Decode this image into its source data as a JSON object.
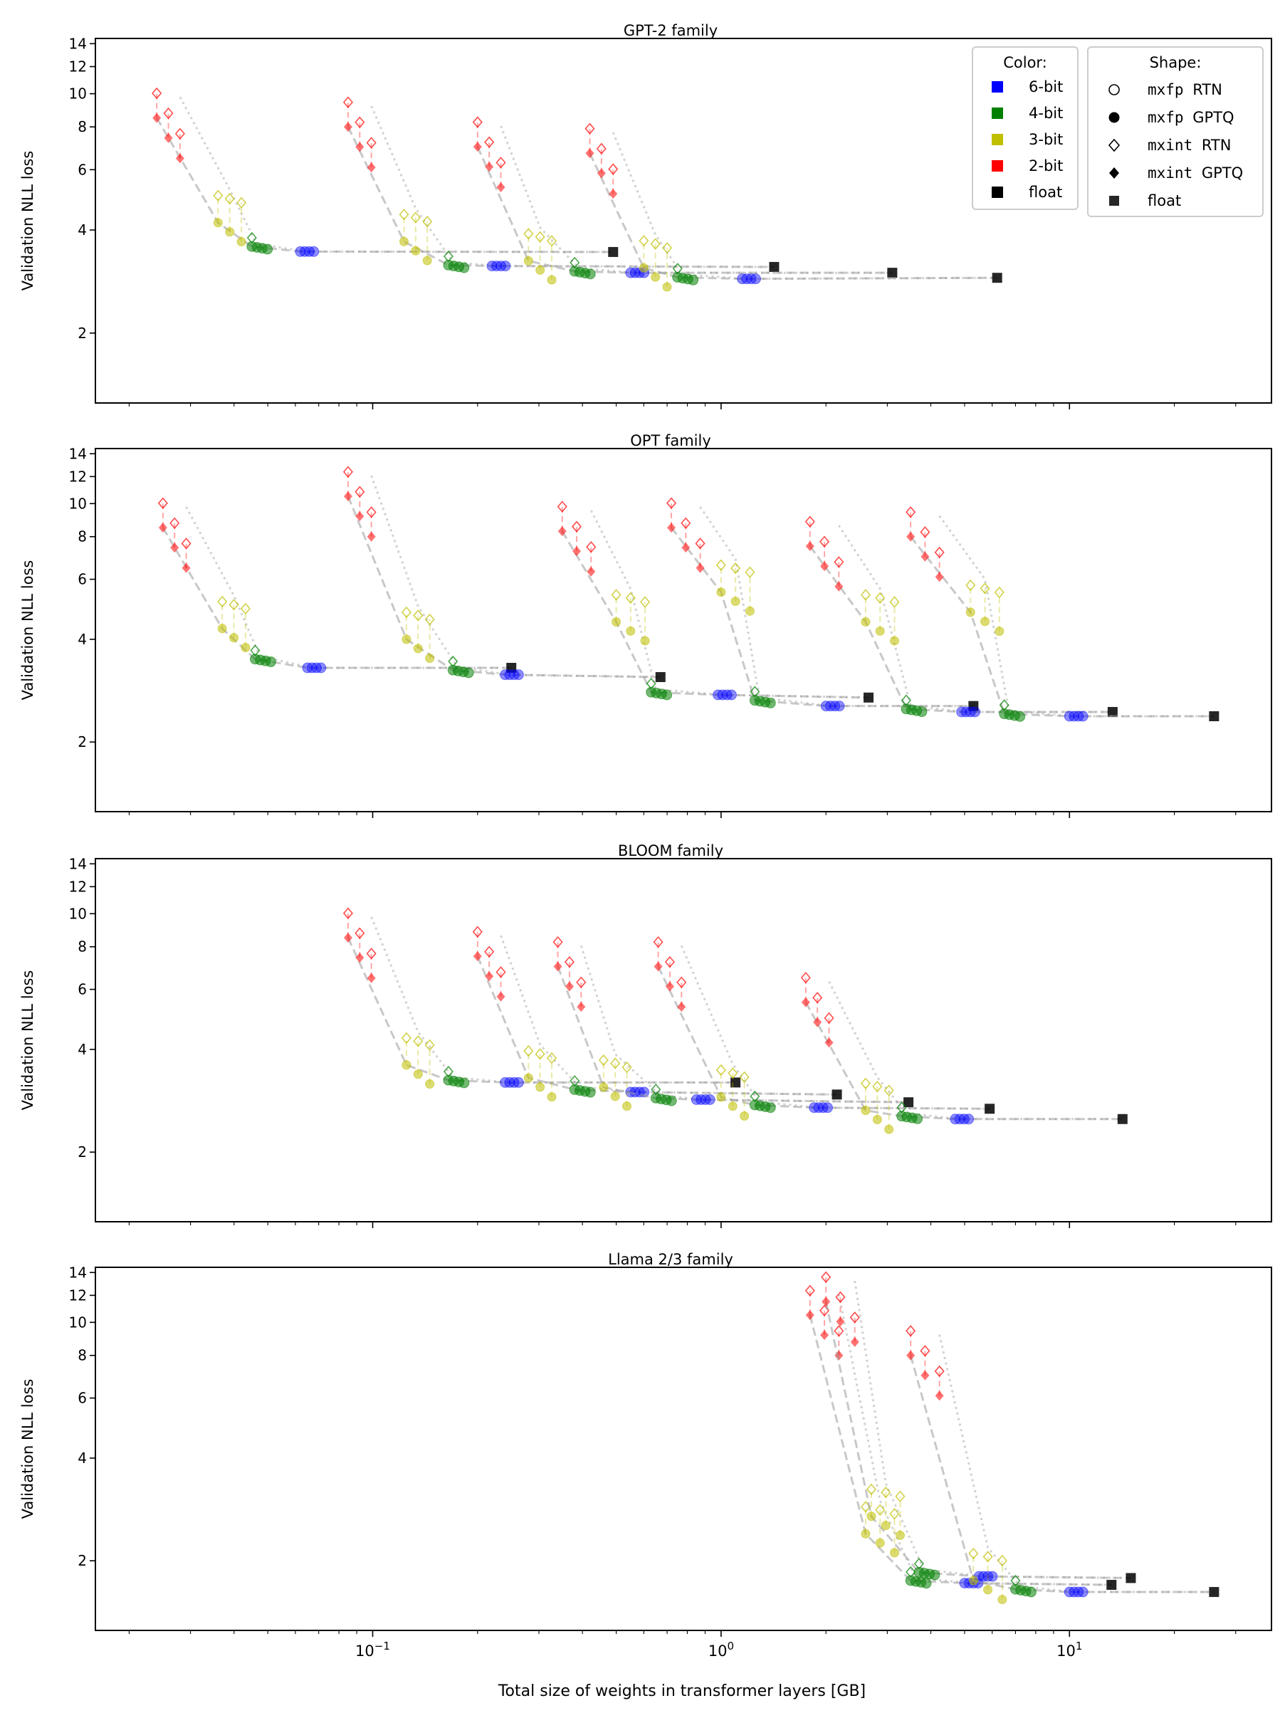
{
  "chart_data": {
    "type": "scatter",
    "xlabel": "Total size of weights in transformer layers [GB]",
    "ylabel": "Validation NLL loss",
    "x_scale": "log",
    "y_scale": "log",
    "xlim": [
      0.016,
      38
    ],
    "ylim": [
      1.25,
      14.5
    ],
    "x_ticks": [
      {
        "value": 0.1,
        "base": "10",
        "exp": "−1"
      },
      {
        "value": 1,
        "base": "10",
        "exp": "0"
      },
      {
        "value": 10,
        "base": "10",
        "exp": "1"
      }
    ],
    "y_ticks": [
      {
        "value": 2,
        "label": "2"
      },
      {
        "value": 4,
        "label": "4"
      },
      {
        "value": 6,
        "label": "6"
      },
      {
        "value": 8,
        "label": "8"
      },
      {
        "value": 10,
        "label": "10"
      },
      {
        "value": 12,
        "label": "12"
      },
      {
        "value": 14,
        "label": "14"
      }
    ],
    "colors": {
      "6-bit": "#0000ff",
      "4-bit": "#008000",
      "3-bit": "#bfbf00",
      "2-bit": "#ff0000",
      "float": "#000000"
    },
    "legend_color": {
      "title": "Color:",
      "entries": [
        {
          "label": "6-bit",
          "color": "#0000ff"
        },
        {
          "label": "4-bit",
          "color": "#008000"
        },
        {
          "label": "3-bit",
          "color": "#bfbf00"
        },
        {
          "label": "2-bit",
          "color": "#ff0000"
        },
        {
          "label": "float",
          "color": "#000000"
        }
      ]
    },
    "legend_shape": {
      "title": "Shape:",
      "entries": [
        {
          "fmt": "mxfp",
          "method": "RTN",
          "shape": "open-circle"
        },
        {
          "fmt": "mxfp",
          "method": "GPTQ",
          "shape": "filled-circle"
        },
        {
          "fmt": "mxint",
          "method": "RTN",
          "shape": "open-diamond"
        },
        {
          "fmt": "mxint",
          "method": "GPTQ",
          "shape": "filled-diamond"
        },
        {
          "fmt": "",
          "method": "float",
          "shape": "filled-square"
        }
      ]
    },
    "panels": [
      {
        "title": "GPT-2 family",
        "models": [
          {
            "float": [
              0.49,
              3.45
            ],
            "bit6": [
              0.062,
              3.46
            ],
            "bit4": [
              0.045,
              3.58
            ],
            "bit3": [
              0.036,
              4.2
            ],
            "bit2": [
              0.024,
              8.5
            ],
            "spread": 1.08
          },
          {
            "float": [
              1.42,
              3.12
            ],
            "bit6": [
              0.22,
              3.14
            ],
            "bit4": [
              0.165,
              3.16
            ],
            "bit3": [
              0.123,
              3.7
            ],
            "bit2": [
              0.085,
              8.0
            ],
            "spread": 1.08
          },
          {
            "float": [
              3.1,
              3.0
            ],
            "bit6": [
              0.55,
              3.0
            ],
            "bit4": [
              0.38,
              3.03
            ],
            "bit3": [
              0.28,
              3.25
            ],
            "bit2": [
              0.2,
              7.0
            ],
            "spread": 1.08
          },
          {
            "float": [
              6.2,
              2.9
            ],
            "bit6": [
              1.15,
              2.88
            ],
            "bit4": [
              0.75,
              2.91
            ],
            "bit3": [
              0.6,
              3.1
            ],
            "bit2": [
              0.42,
              6.7
            ],
            "spread": 1.08
          }
        ]
      },
      {
        "title": "OPT family",
        "models": [
          {
            "float": [
              0.25,
              3.3
            ],
            "bit6": [
              0.065,
              3.3
            ],
            "bit4": [
              0.046,
              3.5
            ],
            "bit3": [
              0.037,
              4.3
            ],
            "bit2": [
              0.025,
              8.5
            ],
            "spread": 1.08
          },
          {
            "float": [
              0.67,
              3.1
            ],
            "bit6": [
              0.24,
              3.15
            ],
            "bit4": [
              0.17,
              3.25
            ],
            "bit3": [
              0.125,
              4.0
            ],
            "bit2": [
              0.085,
              10.5
            ],
            "spread": 1.08
          },
          {
            "float": [
              2.65,
              2.7
            ],
            "bit6": [
              0.98,
              2.75
            ],
            "bit4": [
              0.63,
              2.8
            ],
            "bit3": [
              0.5,
              4.5
            ],
            "bit2": [
              0.35,
              8.3
            ],
            "spread": 1.1
          },
          {
            "float": [
              5.3,
              2.55
            ],
            "bit6": [
              2.0,
              2.55
            ],
            "bit4": [
              1.25,
              2.65
            ],
            "bit3": [
              1.0,
              5.5
            ],
            "bit2": [
              0.72,
              8.5
            ],
            "spread": 1.1
          },
          {
            "float": [
              13.3,
              2.45
            ],
            "bit6": [
              4.9,
              2.45
            ],
            "bit4": [
              3.4,
              2.5
            ],
            "bit3": [
              2.6,
              4.5
            ],
            "bit2": [
              1.8,
              7.5
            ],
            "spread": 1.1
          },
          {
            "float": [
              26.0,
              2.38
            ],
            "bit6": [
              10.0,
              2.38
            ],
            "bit4": [
              6.5,
              2.42
            ],
            "bit3": [
              5.2,
              4.8
            ],
            "bit2": [
              3.5,
              8.0
            ],
            "spread": 1.1
          }
        ]
      },
      {
        "title": "BLOOM family",
        "models": [
          {
            "float": [
              1.1,
              3.2
            ],
            "bit6": [
              0.24,
              3.2
            ],
            "bit4": [
              0.165,
              3.25
            ],
            "bit3": [
              0.125,
              3.6
            ],
            "bit2": [
              0.085,
              8.5
            ],
            "spread": 1.08
          },
          {
            "float": [
              2.15,
              2.95
            ],
            "bit6": [
              0.55,
              3.0
            ],
            "bit4": [
              0.38,
              3.05
            ],
            "bit3": [
              0.28,
              3.3
            ],
            "bit2": [
              0.2,
              7.5
            ],
            "spread": 1.08
          },
          {
            "float": [
              3.45,
              2.8
            ],
            "bit6": [
              0.85,
              2.85
            ],
            "bit4": [
              0.65,
              2.88
            ],
            "bit3": [
              0.46,
              3.1
            ],
            "bit2": [
              0.34,
              7.0
            ],
            "spread": 1.08
          },
          {
            "float": [
              5.9,
              2.68
            ],
            "bit6": [
              1.85,
              2.7
            ],
            "bit4": [
              1.25,
              2.75
            ],
            "bit3": [
              1.0,
              2.9
            ],
            "bit2": [
              0.66,
              7.0
            ],
            "spread": 1.08
          },
          {
            "float": [
              14.2,
              2.5
            ],
            "bit6": [
              4.7,
              2.5
            ],
            "bit4": [
              3.3,
              2.55
            ],
            "bit3": [
              2.6,
              2.65
            ],
            "bit2": [
              1.75,
              5.5
            ],
            "spread": 1.08
          }
        ]
      },
      {
        "title": "Llama 2/3 family",
        "models": [
          {
            "float": [
              13.2,
              1.7
            ],
            "bit6": [
              5.0,
              1.72
            ],
            "bit4": [
              3.5,
              1.75
            ],
            "bit3": [
              2.6,
              2.4
            ],
            "bit2": [
              1.8,
              10.5
            ],
            "spread": 1.1
          },
          {
            "float": [
              15.0,
              1.78
            ],
            "bit6": [
              5.5,
              1.8
            ],
            "bit4": [
              3.7,
              1.85
            ],
            "bit3": [
              2.7,
              2.7
            ],
            "bit2": [
              2.0,
              11.5
            ],
            "spread": 1.1
          },
          {
            "float": [
              26.0,
              1.62
            ],
            "bit6": [
              10.0,
              1.62
            ],
            "bit4": [
              7.0,
              1.65
            ],
            "bit3": [
              5.3,
              1.75
            ],
            "bit2": [
              3.5,
              8.0
            ],
            "spread": 1.1
          }
        ]
      }
    ]
  }
}
